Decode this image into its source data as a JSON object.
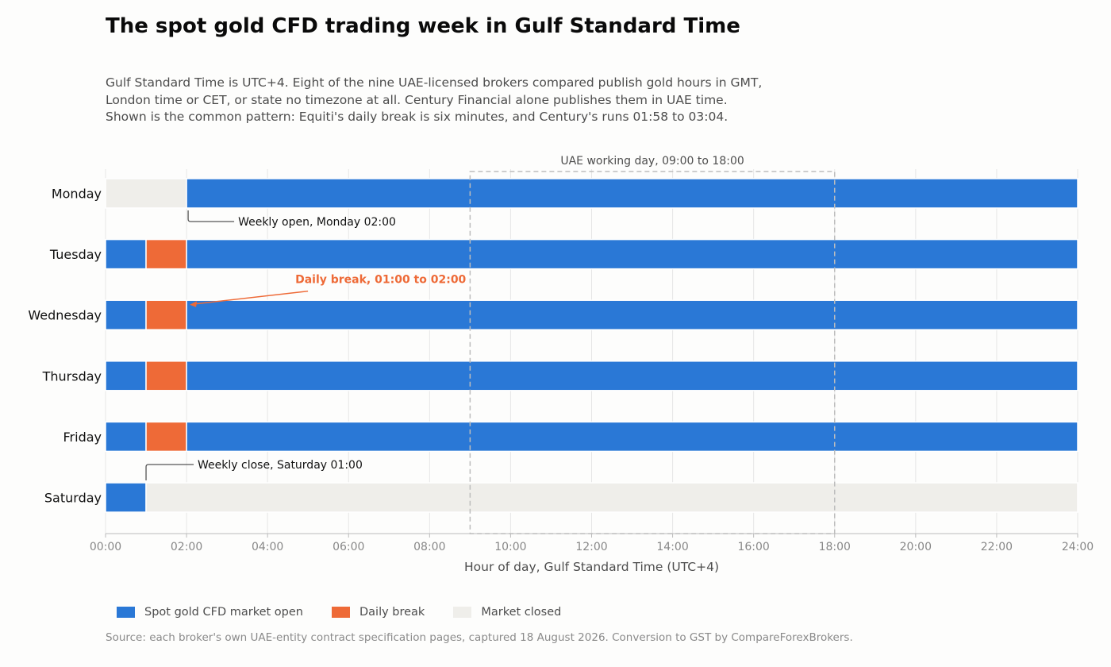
{
  "title": "The spot gold CFD trading week in Gulf Standard Time",
  "subtitle_lines": [
    "Gulf Standard Time is UTC+4. Eight of the nine UAE-licensed brokers compared publish gold hours in GMT,",
    "London time or CET, or state no timezone at all. Century Financial alone publishes them in UAE time.",
    "Shown is the common pattern: Equiti's daily break is six minutes, and Century's runs 01:58 to 03:04."
  ],
  "colors": {
    "open": "#2a78d6",
    "break": "#ee6a37",
    "closed": "#efeeea",
    "grid": "#e6e6e6",
    "axis_text": "#888888",
    "label_text": "#111111",
    "annotation_line": "#555555"
  },
  "chart_data": {
    "type": "gantt",
    "xlabel": "Hour of day, Gulf Standard Time (UTC+4)",
    "xlim": [
      0,
      24
    ],
    "x_ticks": [
      0,
      2,
      4,
      6,
      8,
      10,
      12,
      14,
      16,
      18,
      20,
      22,
      24
    ],
    "x_tick_labels": [
      "00:00",
      "02:00",
      "04:00",
      "06:00",
      "08:00",
      "10:00",
      "12:00",
      "14:00",
      "16:00",
      "18:00",
      "20:00",
      "22:00",
      "24:00"
    ],
    "grid": true,
    "days": [
      {
        "name": "Monday",
        "segments": [
          {
            "start": 0,
            "end": 2,
            "status": "closed"
          },
          {
            "start": 2,
            "end": 24,
            "status": "open"
          }
        ]
      },
      {
        "name": "Tuesday",
        "segments": [
          {
            "start": 0,
            "end": 1,
            "status": "open"
          },
          {
            "start": 1,
            "end": 2,
            "status": "break"
          },
          {
            "start": 2,
            "end": 24,
            "status": "open"
          }
        ]
      },
      {
        "name": "Wednesday",
        "segments": [
          {
            "start": 0,
            "end": 1,
            "status": "open"
          },
          {
            "start": 1,
            "end": 2,
            "status": "break"
          },
          {
            "start": 2,
            "end": 24,
            "status": "open"
          }
        ]
      },
      {
        "name": "Thursday",
        "segments": [
          {
            "start": 0,
            "end": 1,
            "status": "open"
          },
          {
            "start": 1,
            "end": 2,
            "status": "break"
          },
          {
            "start": 2,
            "end": 24,
            "status": "open"
          }
        ]
      },
      {
        "name": "Friday",
        "segments": [
          {
            "start": 0,
            "end": 1,
            "status": "open"
          },
          {
            "start": 1,
            "end": 2,
            "status": "break"
          },
          {
            "start": 2,
            "end": 24,
            "status": "open"
          }
        ]
      },
      {
        "name": "Saturday",
        "segments": [
          {
            "start": 0,
            "end": 1,
            "status": "open"
          },
          {
            "start": 1,
            "end": 24,
            "status": "closed"
          }
        ]
      }
    ],
    "highlight_window": {
      "start": 9,
      "end": 18,
      "label": "UAE working day, 09:00 to 18:00"
    },
    "annotations": [
      {
        "text": "Weekly open, Monday 02:00",
        "x": 2,
        "day": "Monday",
        "style": "elbow-below"
      },
      {
        "text": "Daily break, 01:00 to 02:00",
        "x": 2,
        "day": "Wednesday",
        "style": "arrow-above"
      },
      {
        "text": "Weekly close, Saturday 01:00",
        "x": 1,
        "day": "Saturday",
        "style": "elbow-above"
      }
    ],
    "legend": [
      {
        "label": "Spot gold CFD market open",
        "status": "open"
      },
      {
        "label": "Daily break",
        "status": "break"
      },
      {
        "label": "Market closed",
        "status": "closed"
      }
    ],
    "legend_position": "bottom-left"
  },
  "source": "Source: each broker's own UAE-entity contract specification pages, captured 18 August 2026. Conversion to GST by CompareForexBrokers."
}
